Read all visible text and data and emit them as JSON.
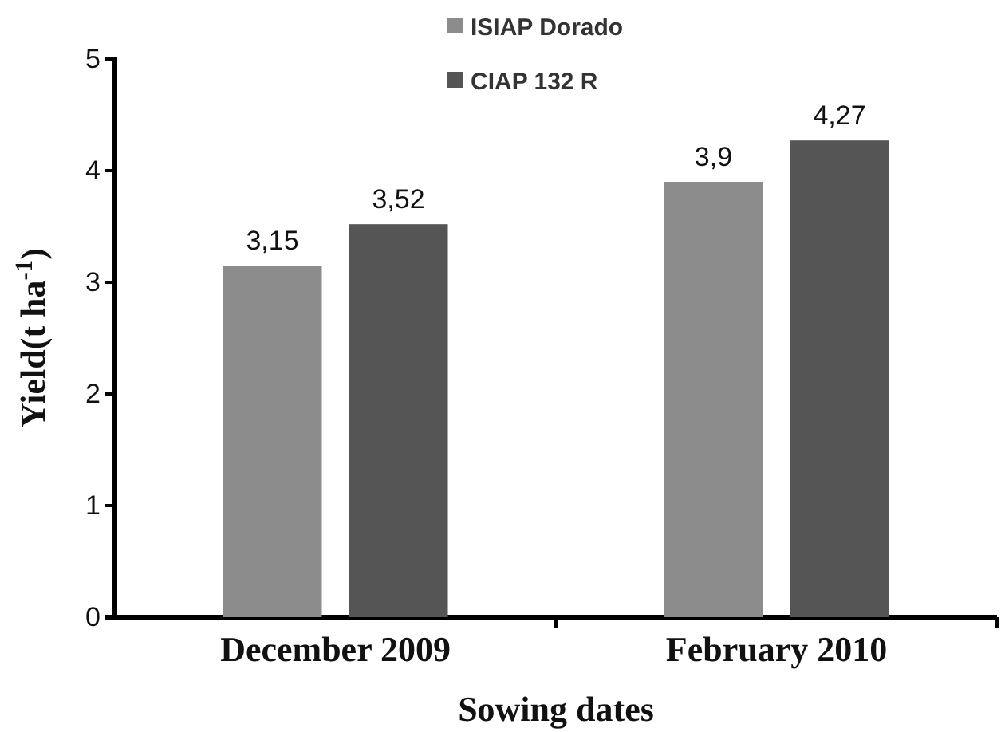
{
  "chart_data": {
    "type": "bar",
    "xlabel": "Sowing dates",
    "ylabel": "Yield(t ha$^{-1}$)",
    "categories": [
      "December 2009",
      "February 2010"
    ],
    "series": [
      {
        "name": "ISIAP Dorado",
        "color": "#8c8c8c",
        "values": [
          3.15,
          3.9
        ],
        "value_labels": [
          "3,15",
          "3,9"
        ]
      },
      {
        "name": "CIAP 132 R",
        "color": "#555555",
        "values": [
          3.52,
          4.27
        ],
        "value_labels": [
          "3,52",
          "4,27"
        ]
      }
    ],
    "ylim": [
      0,
      5
    ],
    "yticks": [
      0,
      1,
      2,
      3,
      4,
      5
    ],
    "legend": "top",
    "grid": false
  }
}
